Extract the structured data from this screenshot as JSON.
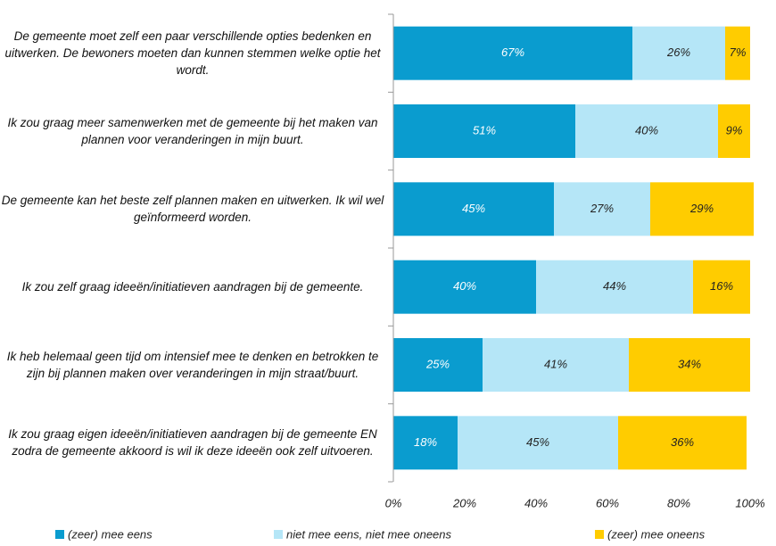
{
  "chart_data": {
    "type": "stacked-barh",
    "categories": [
      "De gemeente moet zelf een paar verschillende opties bedenken en uitwerken. De bewoners moeten dan kunnen stemmen welke optie het wordt.",
      "Ik zou graag meer samenwerken met de gemeente bij het maken van plannen voor veranderingen in mijn buurt.",
      "De gemeente kan het beste zelf plannen maken en uitwerken. Ik wil wel geïnformeerd worden.",
      "Ik zou zelf graag ideeën/initiatieven aandragen bij de gemeente.",
      "Ik heb helemaal geen tijd om intensief mee te denken en betrokken te zijn bij plannen maken over veranderingen in mijn straat/buurt.",
      "Ik zou graag eigen ideeën/initiatieven aandragen bij de gemeente EN zodra de gemeente akkoord is wil ik deze ideeën ook zelf uitvoeren."
    ],
    "series": [
      {
        "name": "(zeer) mee eens",
        "color": "#0a9ccf",
        "label_color": "#ffffff",
        "values": [
          67,
          51,
          45,
          40,
          25,
          18
        ],
        "value_labels": [
          "67%",
          "51%",
          "45%",
          "40%",
          "25%",
          "18%"
        ]
      },
      {
        "name": "niet mee eens, niet mee oneens",
        "color": "#b5e6f7",
        "label_color": "#222222",
        "values": [
          26,
          40,
          27,
          44,
          41,
          45
        ],
        "value_labels": [
          "26%",
          "40%",
          "27%",
          "44%",
          "41%",
          "45%"
        ]
      },
      {
        "name": "(zeer) mee oneens",
        "color": "#ffcc00",
        "label_color": "#222222",
        "values": [
          7,
          9,
          29,
          16,
          34,
          36
        ],
        "value_labels": [
          "7%",
          "9%",
          "29%",
          "16%",
          "34%",
          "36%"
        ]
      }
    ],
    "xlim": [
      0,
      100
    ],
    "xticks": [
      {
        "value": 0,
        "label": "0%"
      },
      {
        "value": 20,
        "label": "20%"
      },
      {
        "value": 40,
        "label": "40%"
      },
      {
        "value": 60,
        "label": "60%"
      },
      {
        "value": 80,
        "label": "80%"
      },
      {
        "value": 100,
        "label": "100%"
      }
    ]
  }
}
